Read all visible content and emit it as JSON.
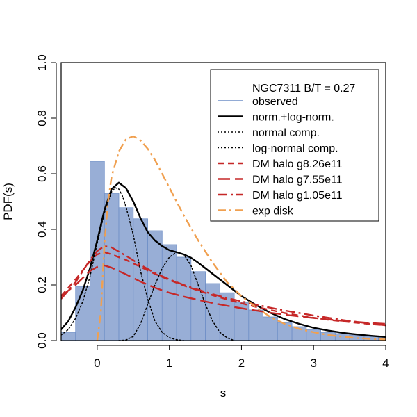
{
  "chart_data": {
    "type": "histogram",
    "xlabel": "s",
    "ylabel": "PDF(s)",
    "xlim": [
      -0.5,
      4
    ],
    "ylim": [
      0,
      1
    ],
    "xticks": [
      "0",
      "1",
      "2",
      "3",
      "4"
    ],
    "yticks": [
      "0.0",
      "0.2",
      "0.4",
      "0.6",
      "0.8",
      "1.0"
    ],
    "grid": false,
    "legend_position": "top-right",
    "legend_title": "NGC7311 B/T = 0.27",
    "bin_width": 0.2,
    "histogram": {
      "name": "observed",
      "color": "#6f8fc7",
      "bin_starts": [
        -0.5,
        -0.3,
        -0.1,
        0.1,
        0.3,
        0.5,
        0.7,
        0.9,
        1.1,
        1.3,
        1.5,
        1.7,
        1.9,
        2.1,
        2.3,
        2.5,
        2.7,
        2.9,
        3.1,
        3.3,
        3.5,
        3.7,
        3.9
      ],
      "values": [
        0.03,
        0.195,
        0.645,
        0.53,
        0.478,
        0.438,
        0.395,
        0.345,
        0.3,
        0.248,
        0.205,
        0.172,
        0.136,
        0.11,
        0.085,
        0.065,
        0.05,
        0.04,
        0.03,
        0.025,
        0.02,
        0.015,
        0.012
      ]
    },
    "series": [
      {
        "name": "norm.+log-norm.",
        "color": "#000000",
        "x": [
          -0.5,
          -0.4,
          -0.3,
          -0.2,
          -0.1,
          0.0,
          0.1,
          0.2,
          0.3,
          0.4,
          0.5,
          0.6,
          0.7,
          0.8,
          0.9,
          1.0,
          1.1,
          1.2,
          1.3,
          1.4,
          1.5,
          1.6,
          1.7,
          1.8,
          1.9,
          2.0,
          2.2,
          2.4,
          2.6,
          2.8,
          3.0,
          3.2,
          3.4,
          3.6,
          3.8,
          4.0
        ],
        "y": [
          0.04,
          0.07,
          0.12,
          0.18,
          0.26,
          0.36,
          0.47,
          0.545,
          0.568,
          0.548,
          0.5,
          0.44,
          0.39,
          0.36,
          0.34,
          0.325,
          0.318,
          0.31,
          0.298,
          0.28,
          0.26,
          0.24,
          0.22,
          0.2,
          0.18,
          0.16,
          0.128,
          0.1,
          0.077,
          0.06,
          0.046,
          0.036,
          0.028,
          0.022,
          0.017,
          0.013
        ]
      },
      {
        "name": "normal comp.",
        "color": "#000000",
        "x": [
          -0.5,
          -0.4,
          -0.3,
          -0.2,
          -0.1,
          0.0,
          0.1,
          0.2,
          0.25,
          0.3,
          0.35,
          0.4,
          0.5,
          0.6,
          0.7,
          0.8,
          0.9,
          1.0,
          1.1,
          1.2
        ],
        "y": [
          0.02,
          0.04,
          0.08,
          0.14,
          0.23,
          0.35,
          0.46,
          0.535,
          0.55,
          0.545,
          0.52,
          0.48,
          0.38,
          0.25,
          0.15,
          0.07,
          0.03,
          0.01,
          0.003,
          0.0
        ]
      },
      {
        "name": "log-normal comp.",
        "color": "#000000",
        "x": [
          0.3,
          0.4,
          0.5,
          0.6,
          0.7,
          0.8,
          0.9,
          1.0,
          1.1,
          1.2,
          1.3,
          1.4,
          1.5,
          1.6,
          1.7,
          1.8,
          1.9
        ],
        "y": [
          0.0,
          0.002,
          0.015,
          0.06,
          0.13,
          0.2,
          0.26,
          0.3,
          0.318,
          0.31,
          0.27,
          0.2,
          0.13,
          0.07,
          0.03,
          0.01,
          0.0
        ]
      },
      {
        "name": "DM halo g8.26e11",
        "color": "#c62828",
        "x": [
          -0.5,
          -0.3,
          -0.1,
          0.0,
          0.1,
          0.2,
          0.4,
          0.6,
          0.8,
          1.0,
          1.2,
          1.4,
          1.6,
          1.8,
          2.0,
          2.2,
          2.4,
          2.6,
          2.8,
          3.0,
          3.2,
          3.4,
          3.6,
          3.8,
          4.0
        ],
        "y": [
          0.16,
          0.22,
          0.285,
          0.31,
          0.318,
          0.31,
          0.29,
          0.265,
          0.24,
          0.218,
          0.198,
          0.18,
          0.163,
          0.148,
          0.134,
          0.121,
          0.11,
          0.099,
          0.09,
          0.082,
          0.075,
          0.069,
          0.064,
          0.059,
          0.055
        ]
      },
      {
        "name": "DM halo g7.55e11",
        "color": "#c62828",
        "x": [
          -0.5,
          -0.3,
          -0.1,
          0.0,
          0.1,
          0.2,
          0.4,
          0.6,
          0.8,
          1.0,
          1.2,
          1.4,
          1.6,
          1.8,
          2.0,
          2.2,
          2.4,
          2.6,
          2.8,
          3.0,
          3.2,
          3.4,
          3.6,
          3.8,
          4.0
        ],
        "y": [
          0.16,
          0.2,
          0.25,
          0.265,
          0.27,
          0.262,
          0.238,
          0.212,
          0.19,
          0.172,
          0.158,
          0.146,
          0.135,
          0.125,
          0.116,
          0.108,
          0.1,
          0.093,
          0.087,
          0.081,
          0.076,
          0.071,
          0.067,
          0.063,
          0.06
        ]
      },
      {
        "name": "DM halo g1.05e11",
        "color": "#c62828",
        "x": [
          -0.5,
          -0.3,
          -0.1,
          0.0,
          0.1,
          0.2,
          0.4,
          0.6,
          0.8,
          1.0,
          1.2,
          1.4,
          1.6,
          1.8,
          2.0,
          2.2,
          2.4,
          2.6,
          2.8,
          3.0,
          3.2,
          3.4,
          3.6,
          3.8,
          4.0
        ],
        "y": [
          0.15,
          0.21,
          0.29,
          0.322,
          0.34,
          0.335,
          0.305,
          0.272,
          0.243,
          0.22,
          0.2,
          0.183,
          0.167,
          0.153,
          0.141,
          0.129,
          0.118,
          0.108,
          0.099,
          0.09,
          0.082,
          0.074,
          0.067,
          0.06,
          0.055
        ]
      },
      {
        "name": "exp disk",
        "color": "#f0a050",
        "x": [
          0.0,
          0.05,
          0.1,
          0.15,
          0.2,
          0.3,
          0.4,
          0.5,
          0.6,
          0.7,
          0.8,
          0.9,
          1.0,
          1.2,
          1.4,
          1.6,
          1.8,
          2.0,
          2.2,
          2.4,
          2.6,
          2.8,
          3.0,
          3.2,
          3.4,
          3.6,
          3.8,
          4.0
        ],
        "y": [
          0.0,
          0.1,
          0.35,
          0.5,
          0.59,
          0.68,
          0.725,
          0.735,
          0.72,
          0.69,
          0.65,
          0.6,
          0.55,
          0.45,
          0.36,
          0.28,
          0.21,
          0.16,
          0.12,
          0.085,
          0.06,
          0.042,
          0.03,
          0.02,
          0.014,
          0.009,
          0.006,
          0.004
        ]
      }
    ]
  }
}
